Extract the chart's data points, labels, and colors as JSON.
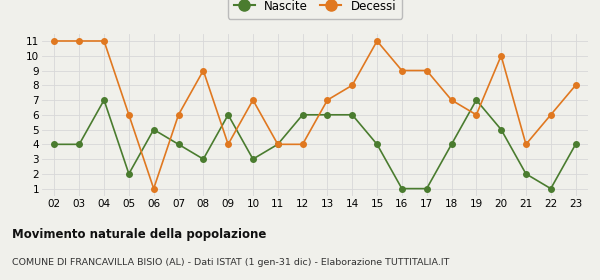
{
  "years": [
    "02",
    "03",
    "04",
    "05",
    "06",
    "07",
    "08",
    "09",
    "10",
    "11",
    "12",
    "13",
    "14",
    "15",
    "16",
    "17",
    "18",
    "19",
    "20",
    "21",
    "22",
    "23"
  ],
  "nascite": [
    4,
    4,
    7,
    2,
    5,
    4,
    3,
    6,
    3,
    4,
    6,
    6,
    6,
    4,
    1,
    1,
    4,
    7,
    5,
    2,
    1,
    4
  ],
  "decessi": [
    11,
    11,
    11,
    6,
    1,
    6,
    9,
    4,
    7,
    4,
    4,
    7,
    8,
    11,
    9,
    9,
    7,
    6,
    10,
    4,
    6,
    8
  ],
  "nascite_color": "#4a7c2f",
  "decessi_color": "#e07820",
  "title": "Movimento naturale della popolazione",
  "subtitle": "COMUNE DI FRANCAVILLA BISIO (AL) - Dati ISTAT (1 gen-31 dic) - Elaborazione TUTTITALIA.IT",
  "legend_nascite": "Nascite",
  "legend_decessi": "Decessi",
  "yticks": [
    1,
    2,
    3,
    4,
    5,
    6,
    7,
    8,
    9,
    10,
    11
  ],
  "bg_color": "#f0f0eb",
  "grid_color": "#d8d8d8"
}
